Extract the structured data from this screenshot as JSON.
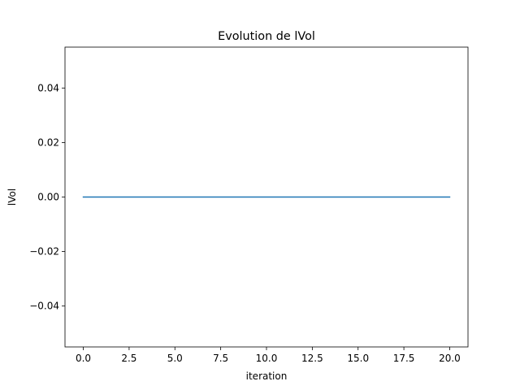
{
  "chart_data": {
    "type": "line",
    "title": "Evolution de lVol",
    "xlabel": "iteration",
    "ylabel": "lVol",
    "xlim": [
      -1,
      21
    ],
    "ylim": [
      -0.055,
      0.055
    ],
    "x_ticks": [
      0,
      2.5,
      5,
      7.5,
      10,
      12.5,
      15,
      17.5,
      20
    ],
    "x_tick_labels": [
      "0.0",
      "2.5",
      "5.0",
      "7.5",
      "10.0",
      "12.5",
      "15.0",
      "17.5",
      "20.0"
    ],
    "y_ticks": [
      -0.04,
      -0.02,
      0,
      0.02,
      0.04
    ],
    "y_tick_labels": [
      "−0.04",
      "−0.02",
      "0.00",
      "0.02",
      "0.04"
    ],
    "grid": false,
    "series": [
      {
        "color": "#1f77b4",
        "x": [
          0,
          1,
          2,
          3,
          4,
          5,
          6,
          7,
          8,
          9,
          10,
          11,
          12,
          13,
          14,
          15,
          16,
          17,
          18,
          19,
          20
        ],
        "y": [
          0,
          0,
          0,
          0,
          0,
          0,
          0,
          0,
          0,
          0,
          0,
          0,
          0,
          0,
          0,
          0,
          0,
          0,
          0,
          0,
          0
        ]
      }
    ]
  }
}
